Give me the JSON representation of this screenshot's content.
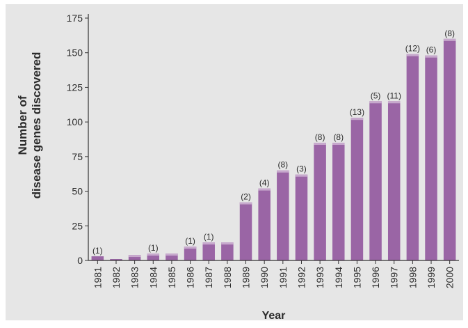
{
  "chart_data": {
    "type": "bar",
    "title": "",
    "xlabel": "Year",
    "ylabel_lines": [
      "Number of",
      "disease genes discovered"
    ],
    "ylim": [
      0,
      175
    ],
    "yticks": [
      0,
      25,
      50,
      75,
      100,
      125,
      150,
      175
    ],
    "categories": [
      "1981",
      "1982",
      "1983",
      "1984",
      "1985",
      "1986",
      "1987",
      "1988",
      "1989",
      "1990",
      "1991",
      "1992",
      "1993",
      "1994",
      "1995",
      "1996",
      "1997",
      "1998",
      "1999",
      "2000"
    ],
    "values": [
      3,
      1,
      4,
      5,
      5,
      10,
      13,
      13,
      42,
      52,
      65,
      62,
      85,
      85,
      103,
      115,
      115,
      149,
      148,
      160
    ],
    "annotations": [
      "(1)",
      "",
      "",
      "(1)",
      "",
      "(1)",
      "(1)",
      "",
      "(2)",
      "(4)",
      "(8)",
      "(3)",
      "(8)",
      "(8)",
      "(13)",
      "(5)",
      "(11)",
      "(12)",
      "(6)",
      "(8)"
    ],
    "grid": false,
    "legend": "none",
    "colors": {
      "background": "#e6e6e6",
      "bar": "#9a65a5",
      "bar_cap": "#c7a9cd",
      "axis": "#333333",
      "text": "#2b2b2b"
    }
  }
}
